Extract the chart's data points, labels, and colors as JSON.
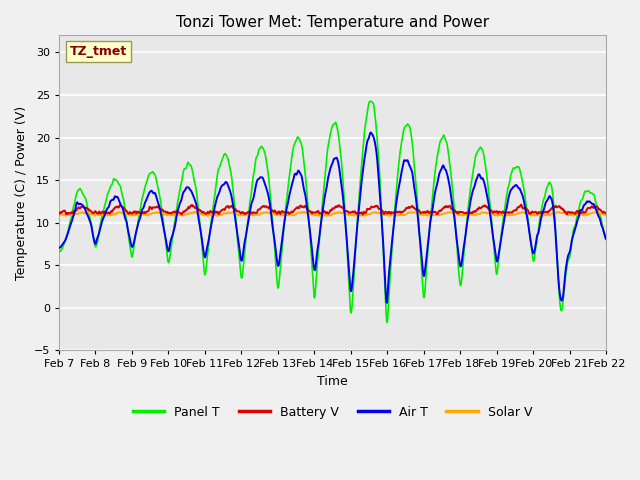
{
  "title": "Tonzi Tower Met: Temperature and Power",
  "xlabel": "Time",
  "ylabel": "Temperature (C) / Power (V)",
  "ylim": [
    -5,
    32
  ],
  "yticks": [
    -5,
    0,
    5,
    10,
    15,
    20,
    25,
    30
  ],
  "xlim_days": [
    7,
    22
  ],
  "x_tick_labels": [
    "Feb 7",
    "Feb 8",
    "Feb 9",
    "Feb 10",
    "Feb 11",
    "Feb 12",
    "Feb 13",
    "Feb 14",
    "Feb 15",
    "Feb 16",
    "Feb 17",
    "Feb 18",
    "Feb 19",
    "Feb 20",
    "Feb 21",
    "Feb 22"
  ],
  "series_colors": {
    "Panel T": "#00ee00",
    "Battery V": "#dd0000",
    "Air T": "#0000ee",
    "Solar V": "#ffaa00"
  },
  "watermark_text": "TZ_tmet",
  "watermark_bg": "#ffffcc",
  "watermark_fg": "#880000",
  "background_inner": "#e8e8e8",
  "background_outer": "#f0f0f0",
  "grid_color": "#ffffff",
  "n_points": 1440,
  "days_start": 7,
  "days_end": 22
}
